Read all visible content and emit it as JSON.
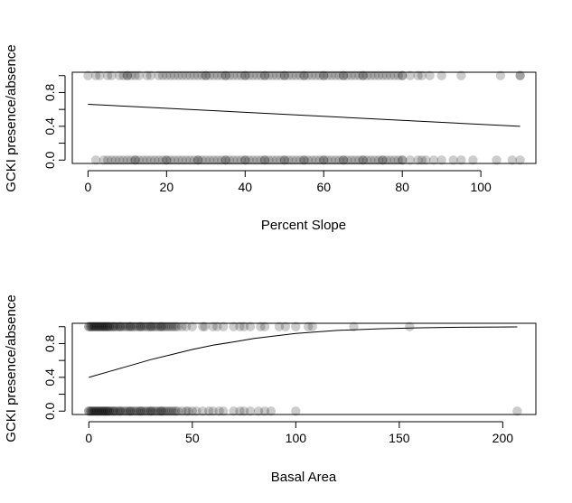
{
  "chart_data": [
    {
      "type": "scatter",
      "title": "",
      "xlabel": "Percent Slope",
      "ylabel": "GCKI presence/absence",
      "xlim": [
        -4,
        114
      ],
      "ylim": [
        -0.04,
        1.04
      ],
      "x_ticks": [
        "0",
        "20",
        "40",
        "60",
        "80",
        "100"
      ],
      "y_ticks": [
        "0.0",
        "0.4",
        "0.8"
      ],
      "x_tick_values": [
        0,
        20,
        40,
        60,
        80,
        100
      ],
      "y_tick_values": [
        0,
        0.4,
        0.8
      ],
      "y_minor_tick_values": [
        0.2,
        0.6,
        1.0
      ],
      "point_color": "#000000",
      "point_opacity": 0.2,
      "grid": false,
      "series": [
        {
          "values_y": 1,
          "x": [
            0,
            2,
            3,
            5,
            6,
            8,
            9,
            10,
            10,
            11,
            12,
            13,
            15,
            16,
            18,
            19,
            20,
            21,
            22,
            23,
            24,
            25,
            26,
            27,
            28,
            29,
            30,
            30,
            31,
            32,
            33,
            34,
            35,
            35,
            36,
            37,
            38,
            39,
            40,
            40,
            41,
            42,
            43,
            44,
            45,
            45,
            46,
            47,
            48,
            49,
            50,
            50,
            51,
            52,
            53,
            54,
            55,
            55,
            56,
            57,
            58,
            59,
            60,
            60,
            61,
            62,
            63,
            64,
            65,
            65,
            66,
            67,
            68,
            69,
            70,
            70,
            71,
            72,
            73,
            74,
            75,
            76,
            77,
            78,
            79,
            80,
            80,
            82,
            84,
            85,
            87,
            90,
            95,
            105,
            110,
            110
          ]
        },
        {
          "values_y": 0,
          "x": [
            2,
            4,
            5,
            6,
            7,
            8,
            9,
            10,
            11,
            12,
            12,
            13,
            14,
            15,
            16,
            17,
            18,
            19,
            20,
            20,
            21,
            22,
            23,
            24,
            25,
            26,
            27,
            28,
            28,
            29,
            30,
            31,
            32,
            33,
            34,
            35,
            35,
            36,
            37,
            38,
            39,
            40,
            40,
            41,
            42,
            43,
            44,
            45,
            45,
            46,
            47,
            48,
            49,
            50,
            50,
            51,
            52,
            53,
            54,
            55,
            55,
            56,
            57,
            58,
            59,
            60,
            60,
            61,
            62,
            63,
            64,
            65,
            65,
            66,
            67,
            68,
            69,
            70,
            70,
            71,
            72,
            73,
            74,
            75,
            75,
            76,
            77,
            78,
            79,
            80,
            80,
            82,
            84,
            85,
            86,
            88,
            90,
            93,
            95,
            98,
            104,
            108,
            110
          ]
        }
      ],
      "fit_line": {
        "x": [
          0,
          110
        ],
        "y": [
          0.66,
          0.4
        ]
      }
    },
    {
      "type": "scatter",
      "title": "",
      "xlabel": "Basal Area",
      "ylabel": "GCKI presence/absence",
      "xlim": [
        -8,
        216
      ],
      "ylim": [
        -0.04,
        1.04
      ],
      "x_ticks": [
        "0",
        "50",
        "100",
        "150",
        "200"
      ],
      "y_ticks": [
        "0.0",
        "0.4",
        "0.8"
      ],
      "x_tick_values": [
        0,
        50,
        100,
        150,
        200
      ],
      "y_tick_values": [
        0,
        0.4,
        0.8
      ],
      "y_minor_tick_values": [
        0.2,
        0.6,
        1.0
      ],
      "point_color": "#000000",
      "point_opacity": 0.2,
      "grid": false,
      "series": [
        {
          "values_y": 1,
          "x": [
            0,
            0,
            1,
            1,
            2,
            2,
            3,
            3,
            4,
            4,
            5,
            5,
            6,
            6,
            7,
            7,
            8,
            8,
            9,
            9,
            10,
            10,
            11,
            12,
            12,
            13,
            14,
            15,
            15,
            16,
            17,
            18,
            19,
            20,
            20,
            21,
            22,
            23,
            24,
            25,
            25,
            26,
            27,
            28,
            29,
            30,
            30,
            31,
            32,
            33,
            34,
            35,
            35,
            36,
            37,
            38,
            39,
            40,
            41,
            42,
            43,
            45,
            47,
            50,
            55,
            56,
            60,
            62,
            65,
            70,
            73,
            75,
            78,
            83,
            85,
            92,
            95,
            100,
            106,
            108,
            128,
            155
          ]
        },
        {
          "values_y": 0,
          "x": [
            0,
            0,
            1,
            1,
            2,
            2,
            3,
            3,
            4,
            4,
            5,
            5,
            6,
            6,
            7,
            7,
            8,
            8,
            9,
            9,
            10,
            10,
            11,
            12,
            12,
            13,
            14,
            15,
            15,
            16,
            17,
            18,
            19,
            20,
            20,
            21,
            22,
            23,
            24,
            25,
            25,
            26,
            27,
            28,
            29,
            30,
            30,
            31,
            32,
            33,
            34,
            35,
            35,
            36,
            37,
            38,
            39,
            40,
            41,
            42,
            43,
            45,
            47,
            48,
            50,
            52,
            55,
            58,
            60,
            63,
            65,
            70,
            73,
            75,
            78,
            82,
            85,
            88,
            100,
            207
          ]
        }
      ],
      "fit_line": {
        "x": [
          0,
          10,
          20,
          30,
          40,
          50,
          60,
          70,
          80,
          90,
          100,
          120,
          140,
          160,
          180,
          207
        ],
        "y": [
          0.4,
          0.47,
          0.54,
          0.61,
          0.67,
          0.73,
          0.78,
          0.82,
          0.86,
          0.89,
          0.92,
          0.955,
          0.975,
          0.987,
          0.993,
          0.997
        ]
      }
    }
  ]
}
